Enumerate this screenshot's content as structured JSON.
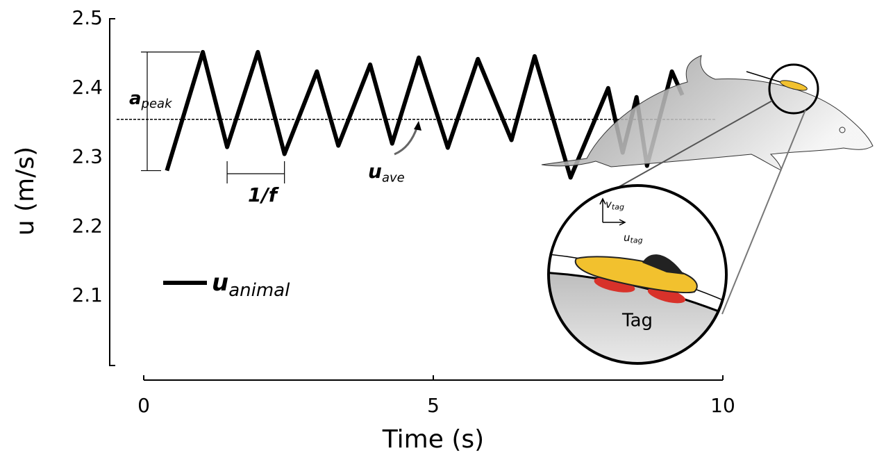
{
  "chart_data": {
    "type": "line",
    "x": [
      0.4,
      1.02,
      1.44,
      1.97,
      2.43,
      2.99,
      3.36,
      3.91,
      4.29,
      4.75,
      5.25,
      5.77,
      6.35,
      6.75,
      7.37,
      8.02,
      8.27,
      8.51,
      8.69,
      9.12,
      9.3
    ],
    "series": [
      {
        "name": "u",
        "name_subscript": "animal",
        "color": "#000000",
        "values": [
          2.281,
          2.452,
          2.315,
          2.452,
          2.305,
          2.424,
          2.317,
          2.434,
          2.32,
          2.444,
          2.314,
          2.442,
          2.325,
          2.446,
          2.271,
          2.4,
          2.307,
          2.387,
          2.288,
          2.424,
          2.39
        ]
      }
    ],
    "xlim": [
      0,
      10
    ],
    "xticks": [
      0,
      5,
      10
    ],
    "ylim": [
      2.0,
      2.5
    ],
    "yticks": [
      2.1,
      2.2,
      2.3,
      2.4,
      2.5
    ],
    "xlabel": "Time (s)",
    "ylabel": "u (m/s)",
    "reference_line": {
      "symbol": "u",
      "subscript": "ave",
      "value": 2.355
    },
    "annotations": {
      "amplitude": {
        "symbol": "a",
        "subscript": "peak"
      },
      "period": {
        "label": "1/f"
      }
    },
    "inset": {
      "label": "Tag",
      "axes": [
        {
          "symbol": "v",
          "subscript": "tag"
        },
        {
          "symbol": "u",
          "subscript": "tag"
        }
      ]
    }
  }
}
